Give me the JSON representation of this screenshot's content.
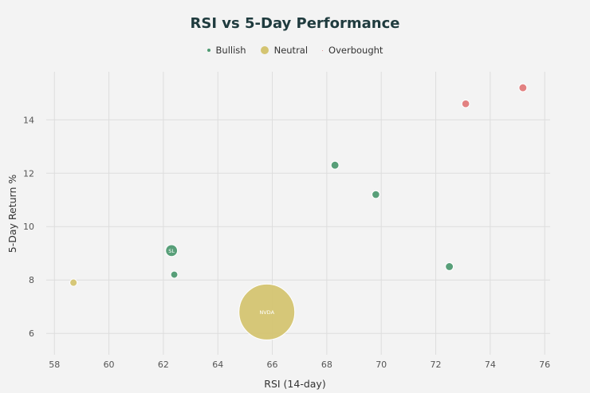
{
  "chart_data": {
    "type": "scatter",
    "title": "RSI vs 5-Day Performance",
    "xlabel": "RSI (14-day)",
    "ylabel": "5-Day Return %",
    "xlim": [
      57.7,
      76.2
    ],
    "ylim": [
      5.2,
      15.8
    ],
    "xticks": [
      58,
      60,
      62,
      64,
      66,
      68,
      70,
      72,
      74,
      76
    ],
    "yticks": [
      6,
      8,
      10,
      12,
      14
    ],
    "grid": true,
    "legend_position": "top-center",
    "legend": [
      {
        "name": "Bullish",
        "color": "#4f9a72"
      },
      {
        "name": "Neutral",
        "color": "#d4c471"
      },
      {
        "name": "Overbought",
        "color": "#e07a7a"
      }
    ],
    "series": [
      {
        "name": "Bullish",
        "color": "#4f9a72",
        "points": [
          {
            "x": 62.3,
            "y": 9.1,
            "size": 4.5,
            "label": "SL"
          },
          {
            "x": 62.4,
            "y": 8.2,
            "size": 1.6,
            "label": ""
          },
          {
            "x": 68.3,
            "y": 12.3,
            "size": 2.0,
            "label": ""
          },
          {
            "x": 69.8,
            "y": 11.2,
            "size": 1.9,
            "label": ""
          },
          {
            "x": 72.5,
            "y": 8.5,
            "size": 2.0,
            "label": ""
          }
        ]
      },
      {
        "name": "Neutral",
        "color": "#d4c471",
        "points": [
          {
            "x": 58.7,
            "y": 7.9,
            "size": 1.7,
            "label": ""
          },
          {
            "x": 65.8,
            "y": 6.8,
            "size": 100,
            "label": "NVDA"
          }
        ]
      },
      {
        "name": "Overbought",
        "color": "#e07a7a",
        "points": [
          {
            "x": 73.1,
            "y": 14.6,
            "size": 1.9,
            "label": ""
          },
          {
            "x": 75.2,
            "y": 15.2,
            "size": 2.0,
            "label": ""
          }
        ]
      }
    ]
  }
}
